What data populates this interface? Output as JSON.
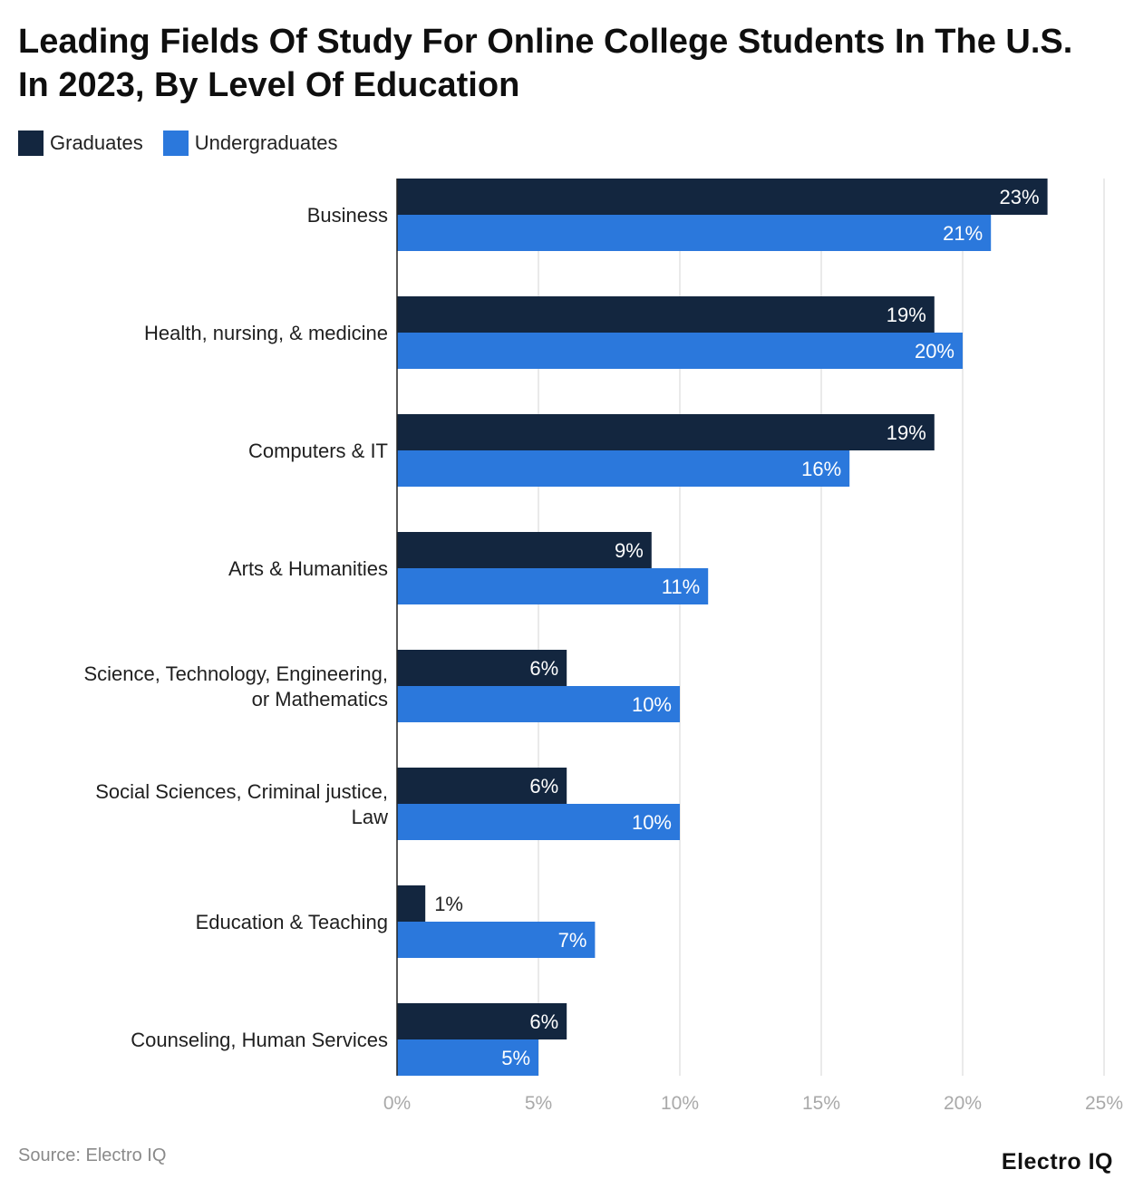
{
  "chart_data": {
    "type": "bar",
    "orientation": "horizontal",
    "title": "Leading Fields Of Study For Online College Students In The U.S. In 2023, By Level Of Education",
    "categories": [
      "Business",
      "Health, nursing, & medicine",
      "Computers & IT",
      "Arts & Humanities",
      "Science, Technology, Engineering, or Mathematics",
      "Social Sciences, Criminal justice, Law",
      "Education & Teaching",
      "Counseling, Human Services"
    ],
    "series": [
      {
        "name": "Graduates",
        "color": "#13263f",
        "values": [
          23,
          19,
          19,
          9,
          6,
          6,
          1,
          6
        ]
      },
      {
        "name": "Undergraduates",
        "color": "#2b78dc",
        "values": [
          21,
          20,
          16,
          11,
          10,
          10,
          7,
          5
        ]
      }
    ],
    "value_suffix": "%",
    "xlim": [
      0,
      25
    ],
    "x_ticks": [
      "0%",
      "5%",
      "10%",
      "15%",
      "20%",
      "25%"
    ],
    "grid": true,
    "legend_position": "top-left"
  },
  "footer": {
    "source": "Source: Electro IQ",
    "brand": "Electro IQ"
  }
}
